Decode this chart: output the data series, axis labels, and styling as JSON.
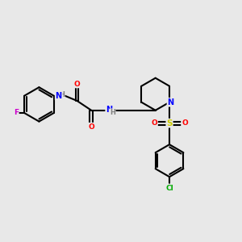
{
  "background_color": "#e8e8e8",
  "bond_color": "#000000",
  "atom_colors": {
    "N": "#0000ff",
    "O": "#ff0000",
    "F": "#cc00cc",
    "Cl": "#00aa00",
    "S": "#cccc00",
    "C": "#000000",
    "H": "#808080"
  },
  "figsize": [
    3.0,
    3.0
  ],
  "dpi": 100
}
